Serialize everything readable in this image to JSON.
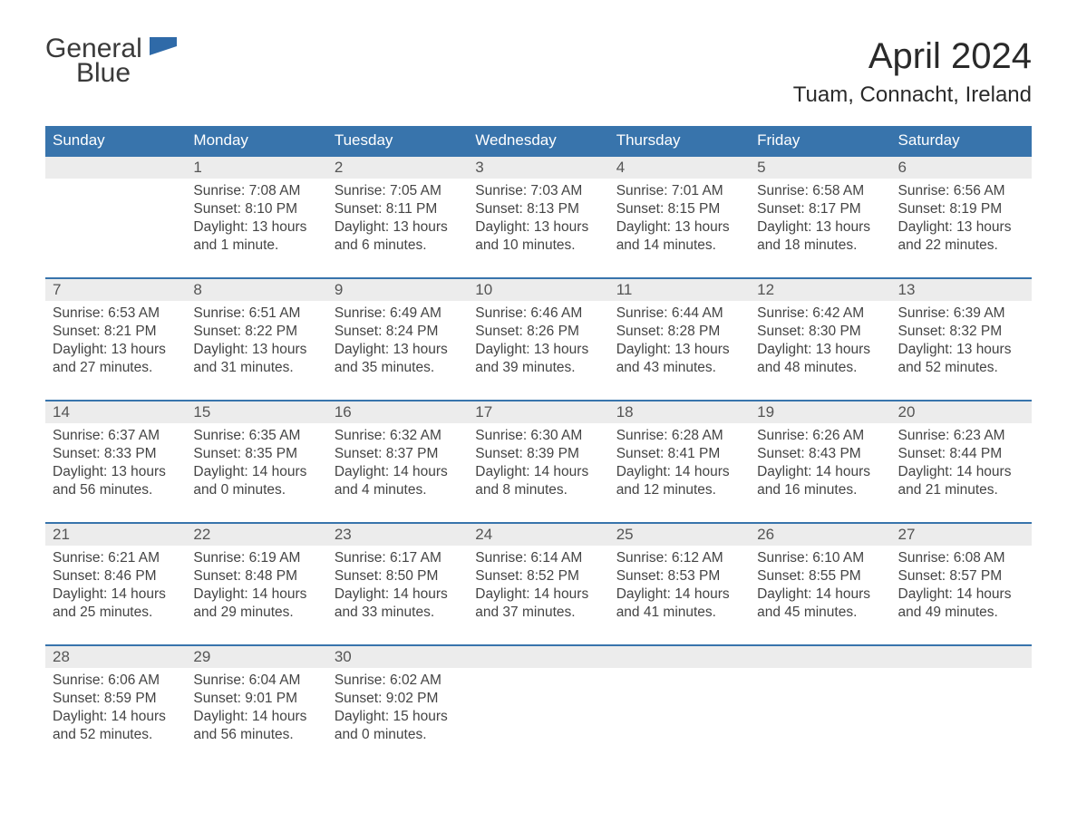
{
  "logo": {
    "text1": "General",
    "text2": "Blue"
  },
  "title": "April 2024",
  "location": "Tuam, Connacht, Ireland",
  "colors": {
    "header_bg": "#3874ac",
    "header_text": "#ffffff",
    "daynum_bg": "#ececec",
    "body_text": "#444444",
    "rule": "#3874ac"
  },
  "weekdays": [
    "Sunday",
    "Monday",
    "Tuesday",
    "Wednesday",
    "Thursday",
    "Friday",
    "Saturday"
  ],
  "weeks": [
    [
      {
        "n": "",
        "sunrise": "",
        "sunset": "",
        "daylight1": "",
        "daylight2": ""
      },
      {
        "n": "1",
        "sunrise": "Sunrise: 7:08 AM",
        "sunset": "Sunset: 8:10 PM",
        "daylight1": "Daylight: 13 hours",
        "daylight2": "and 1 minute."
      },
      {
        "n": "2",
        "sunrise": "Sunrise: 7:05 AM",
        "sunset": "Sunset: 8:11 PM",
        "daylight1": "Daylight: 13 hours",
        "daylight2": "and 6 minutes."
      },
      {
        "n": "3",
        "sunrise": "Sunrise: 7:03 AM",
        "sunset": "Sunset: 8:13 PM",
        "daylight1": "Daylight: 13 hours",
        "daylight2": "and 10 minutes."
      },
      {
        "n": "4",
        "sunrise": "Sunrise: 7:01 AM",
        "sunset": "Sunset: 8:15 PM",
        "daylight1": "Daylight: 13 hours",
        "daylight2": "and 14 minutes."
      },
      {
        "n": "5",
        "sunrise": "Sunrise: 6:58 AM",
        "sunset": "Sunset: 8:17 PM",
        "daylight1": "Daylight: 13 hours",
        "daylight2": "and 18 minutes."
      },
      {
        "n": "6",
        "sunrise": "Sunrise: 6:56 AM",
        "sunset": "Sunset: 8:19 PM",
        "daylight1": "Daylight: 13 hours",
        "daylight2": "and 22 minutes."
      }
    ],
    [
      {
        "n": "7",
        "sunrise": "Sunrise: 6:53 AM",
        "sunset": "Sunset: 8:21 PM",
        "daylight1": "Daylight: 13 hours",
        "daylight2": "and 27 minutes."
      },
      {
        "n": "8",
        "sunrise": "Sunrise: 6:51 AM",
        "sunset": "Sunset: 8:22 PM",
        "daylight1": "Daylight: 13 hours",
        "daylight2": "and 31 minutes."
      },
      {
        "n": "9",
        "sunrise": "Sunrise: 6:49 AM",
        "sunset": "Sunset: 8:24 PM",
        "daylight1": "Daylight: 13 hours",
        "daylight2": "and 35 minutes."
      },
      {
        "n": "10",
        "sunrise": "Sunrise: 6:46 AM",
        "sunset": "Sunset: 8:26 PM",
        "daylight1": "Daylight: 13 hours",
        "daylight2": "and 39 minutes."
      },
      {
        "n": "11",
        "sunrise": "Sunrise: 6:44 AM",
        "sunset": "Sunset: 8:28 PM",
        "daylight1": "Daylight: 13 hours",
        "daylight2": "and 43 minutes."
      },
      {
        "n": "12",
        "sunrise": "Sunrise: 6:42 AM",
        "sunset": "Sunset: 8:30 PM",
        "daylight1": "Daylight: 13 hours",
        "daylight2": "and 48 minutes."
      },
      {
        "n": "13",
        "sunrise": "Sunrise: 6:39 AM",
        "sunset": "Sunset: 8:32 PM",
        "daylight1": "Daylight: 13 hours",
        "daylight2": "and 52 minutes."
      }
    ],
    [
      {
        "n": "14",
        "sunrise": "Sunrise: 6:37 AM",
        "sunset": "Sunset: 8:33 PM",
        "daylight1": "Daylight: 13 hours",
        "daylight2": "and 56 minutes."
      },
      {
        "n": "15",
        "sunrise": "Sunrise: 6:35 AM",
        "sunset": "Sunset: 8:35 PM",
        "daylight1": "Daylight: 14 hours",
        "daylight2": "and 0 minutes."
      },
      {
        "n": "16",
        "sunrise": "Sunrise: 6:32 AM",
        "sunset": "Sunset: 8:37 PM",
        "daylight1": "Daylight: 14 hours",
        "daylight2": "and 4 minutes."
      },
      {
        "n": "17",
        "sunrise": "Sunrise: 6:30 AM",
        "sunset": "Sunset: 8:39 PM",
        "daylight1": "Daylight: 14 hours",
        "daylight2": "and 8 minutes."
      },
      {
        "n": "18",
        "sunrise": "Sunrise: 6:28 AM",
        "sunset": "Sunset: 8:41 PM",
        "daylight1": "Daylight: 14 hours",
        "daylight2": "and 12 minutes."
      },
      {
        "n": "19",
        "sunrise": "Sunrise: 6:26 AM",
        "sunset": "Sunset: 8:43 PM",
        "daylight1": "Daylight: 14 hours",
        "daylight2": "and 16 minutes."
      },
      {
        "n": "20",
        "sunrise": "Sunrise: 6:23 AM",
        "sunset": "Sunset: 8:44 PM",
        "daylight1": "Daylight: 14 hours",
        "daylight2": "and 21 minutes."
      }
    ],
    [
      {
        "n": "21",
        "sunrise": "Sunrise: 6:21 AM",
        "sunset": "Sunset: 8:46 PM",
        "daylight1": "Daylight: 14 hours",
        "daylight2": "and 25 minutes."
      },
      {
        "n": "22",
        "sunrise": "Sunrise: 6:19 AM",
        "sunset": "Sunset: 8:48 PM",
        "daylight1": "Daylight: 14 hours",
        "daylight2": "and 29 minutes."
      },
      {
        "n": "23",
        "sunrise": "Sunrise: 6:17 AM",
        "sunset": "Sunset: 8:50 PM",
        "daylight1": "Daylight: 14 hours",
        "daylight2": "and 33 minutes."
      },
      {
        "n": "24",
        "sunrise": "Sunrise: 6:14 AM",
        "sunset": "Sunset: 8:52 PM",
        "daylight1": "Daylight: 14 hours",
        "daylight2": "and 37 minutes."
      },
      {
        "n": "25",
        "sunrise": "Sunrise: 6:12 AM",
        "sunset": "Sunset: 8:53 PM",
        "daylight1": "Daylight: 14 hours",
        "daylight2": "and 41 minutes."
      },
      {
        "n": "26",
        "sunrise": "Sunrise: 6:10 AM",
        "sunset": "Sunset: 8:55 PM",
        "daylight1": "Daylight: 14 hours",
        "daylight2": "and 45 minutes."
      },
      {
        "n": "27",
        "sunrise": "Sunrise: 6:08 AM",
        "sunset": "Sunset: 8:57 PM",
        "daylight1": "Daylight: 14 hours",
        "daylight2": "and 49 minutes."
      }
    ],
    [
      {
        "n": "28",
        "sunrise": "Sunrise: 6:06 AM",
        "sunset": "Sunset: 8:59 PM",
        "daylight1": "Daylight: 14 hours",
        "daylight2": "and 52 minutes."
      },
      {
        "n": "29",
        "sunrise": "Sunrise: 6:04 AM",
        "sunset": "Sunset: 9:01 PM",
        "daylight1": "Daylight: 14 hours",
        "daylight2": "and 56 minutes."
      },
      {
        "n": "30",
        "sunrise": "Sunrise: 6:02 AM",
        "sunset": "Sunset: 9:02 PM",
        "daylight1": "Daylight: 15 hours",
        "daylight2": "and 0 minutes."
      },
      {
        "n": "",
        "sunrise": "",
        "sunset": "",
        "daylight1": "",
        "daylight2": ""
      },
      {
        "n": "",
        "sunrise": "",
        "sunset": "",
        "daylight1": "",
        "daylight2": ""
      },
      {
        "n": "",
        "sunrise": "",
        "sunset": "",
        "daylight1": "",
        "daylight2": ""
      },
      {
        "n": "",
        "sunrise": "",
        "sunset": "",
        "daylight1": "",
        "daylight2": ""
      }
    ]
  ]
}
